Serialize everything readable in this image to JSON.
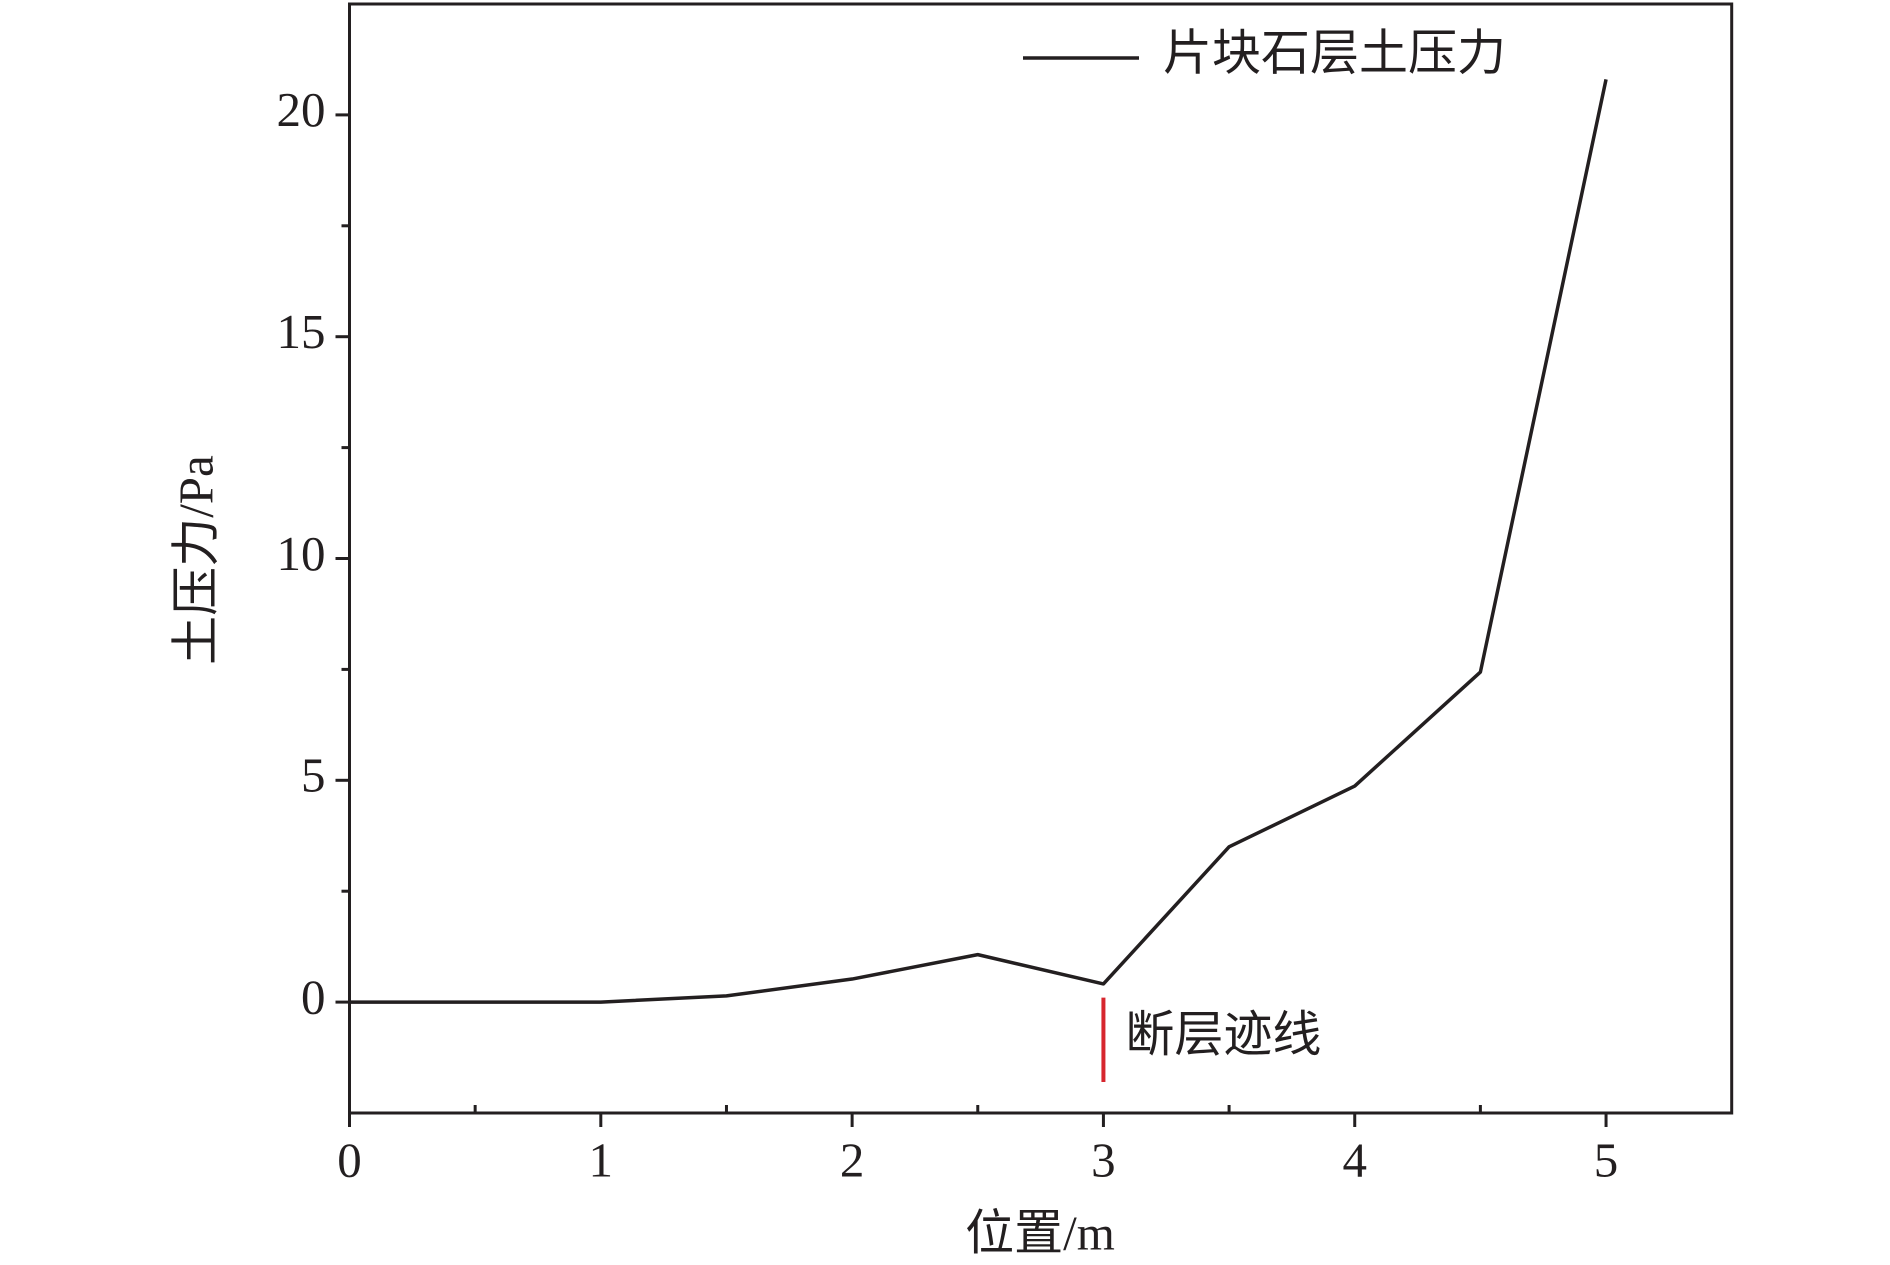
{
  "chart_data": {
    "type": "line",
    "x_label": "位置/m",
    "y_label": "土压力/Pa",
    "x": [
      0,
      0.5,
      1,
      1.5,
      2,
      2.5,
      3,
      3.5,
      4,
      4.5,
      5
    ],
    "series": [
      {
        "name": "片块石层土压力",
        "color": "#231f20",
        "values": [
          0,
          0,
          0,
          0.14,
          0.52,
          1.07,
          0.41,
          3.5,
          4.87,
          7.44,
          20.8
        ]
      }
    ],
    "xlim": [
      0,
      5.5
    ],
    "ylim": [
      -2.5,
      22.5
    ],
    "xticks": [
      0,
      1,
      2,
      3,
      4,
      5
    ],
    "yticks": [
      0,
      5,
      10,
      15,
      20
    ],
    "xminorticks": [
      0.5,
      1.5,
      2.5,
      3.5,
      4.5
    ],
    "yminorticks": [
      2.5,
      7.5,
      12.5,
      17.5
    ],
    "legend": "upper right",
    "annotations": [
      {
        "text": "断层迹线",
        "x": 3,
        "y": [
          -1.8,
          0.1
        ],
        "color": "#d7262e"
      }
    ]
  }
}
